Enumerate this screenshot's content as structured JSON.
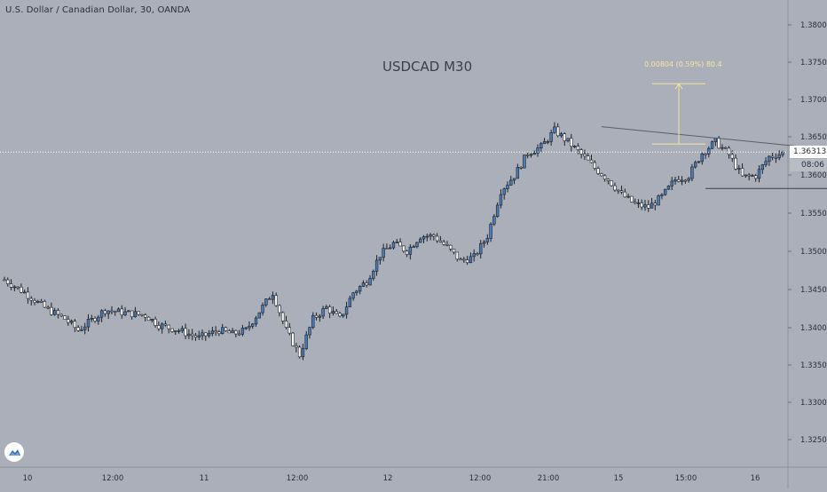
{
  "header": {
    "symbol_info": "U.S. Dollar / Canadian Dollar, 30, OANDA",
    "watermark": "USDCAD M30"
  },
  "price_axis": {
    "current_price": "1.36313",
    "countdown": "08:06"
  },
  "measure": {
    "label": "0.00804 (0.59%) 80.4"
  },
  "colors": {
    "background": "#abafb9",
    "bull_candle": "#4a7db8",
    "bear_candle": "#ffffff",
    "wick": "#1c1f26",
    "axis_text": "#2a2e39",
    "trendline": "#5a5e68",
    "price_line": "#ffffff",
    "measure": "#f5e6a0"
  },
  "chart_data": {
    "type": "candlestick",
    "title": "USDCAD M30",
    "y_ticks": [
      "1.38000",
      "1.37500",
      "1.37000",
      "1.36500",
      "1.36000",
      "1.35500",
      "1.35000",
      "1.34500",
      "1.34000",
      "1.33500",
      "1.33000",
      "1.32500"
    ],
    "ylim": [
      1.3215,
      1.3855
    ],
    "x_ticks": [
      "10",
      "12:00",
      "11",
      "12:00",
      "12",
      "12:00",
      "21:00",
      "15",
      "15:00",
      "16"
    ],
    "price_path": [
      [
        0,
        1.3462
      ],
      [
        6,
        1.3445
      ],
      [
        12,
        1.3425
      ],
      [
        18,
        1.341
      ],
      [
        22,
        1.3395
      ],
      [
        30,
        1.3422
      ],
      [
        36,
        1.3418
      ],
      [
        42,
        1.3415
      ],
      [
        46,
        1.3402
      ],
      [
        52,
        1.3395
      ],
      [
        58,
        1.3385
      ],
      [
        64,
        1.3395
      ],
      [
        68,
        1.339
      ],
      [
        72,
        1.3395
      ],
      [
        76,
        1.342
      ],
      [
        80,
        1.3445
      ],
      [
        84,
        1.3395
      ],
      [
        88,
        1.3362
      ],
      [
        92,
        1.341
      ],
      [
        96,
        1.3425
      ],
      [
        100,
        1.341
      ],
      [
        104,
        1.3445
      ],
      [
        108,
        1.346
      ],
      [
        112,
        1.3495
      ],
      [
        116,
        1.351
      ],
      [
        120,
        1.35
      ],
      [
        124,
        1.352
      ],
      [
        128,
        1.352
      ],
      [
        132,
        1.3505
      ],
      [
        136,
        1.3487
      ],
      [
        140,
        1.3492
      ],
      [
        144,
        1.352
      ],
      [
        148,
        1.358
      ],
      [
        152,
        1.36
      ],
      [
        156,
        1.363
      ],
      [
        160,
        1.3638
      ],
      [
        164,
        1.366
      ],
      [
        168,
        1.3645
      ],
      [
        172,
        1.3628
      ],
      [
        176,
        1.361
      ],
      [
        180,
        1.3595
      ],
      [
        184,
        1.3575
      ],
      [
        188,
        1.3562
      ],
      [
        192,
        1.3558
      ],
      [
        196,
        1.3572
      ],
      [
        200,
        1.3595
      ],
      [
        204,
        1.36
      ],
      [
        208,
        1.363
      ],
      [
        212,
        1.3645
      ],
      [
        216,
        1.3628
      ],
      [
        220,
        1.3598
      ],
      [
        224,
        1.36
      ],
      [
        228,
        1.3625
      ],
      [
        232,
        1.363
      ]
    ],
    "candles": [],
    "trendline": {
      "from": [
        178,
        1.3665
      ],
      "to": [
        257,
        1.363
      ]
    },
    "support_line": {
      "from": [
        209,
        1.3583
      ],
      "to": [
        262,
        1.3583
      ]
    },
    "current_price": 1.36313,
    "measure": {
      "from": 1.3642,
      "to": 1.3722,
      "label": "0.00804 (0.59%) 80.4"
    }
  }
}
